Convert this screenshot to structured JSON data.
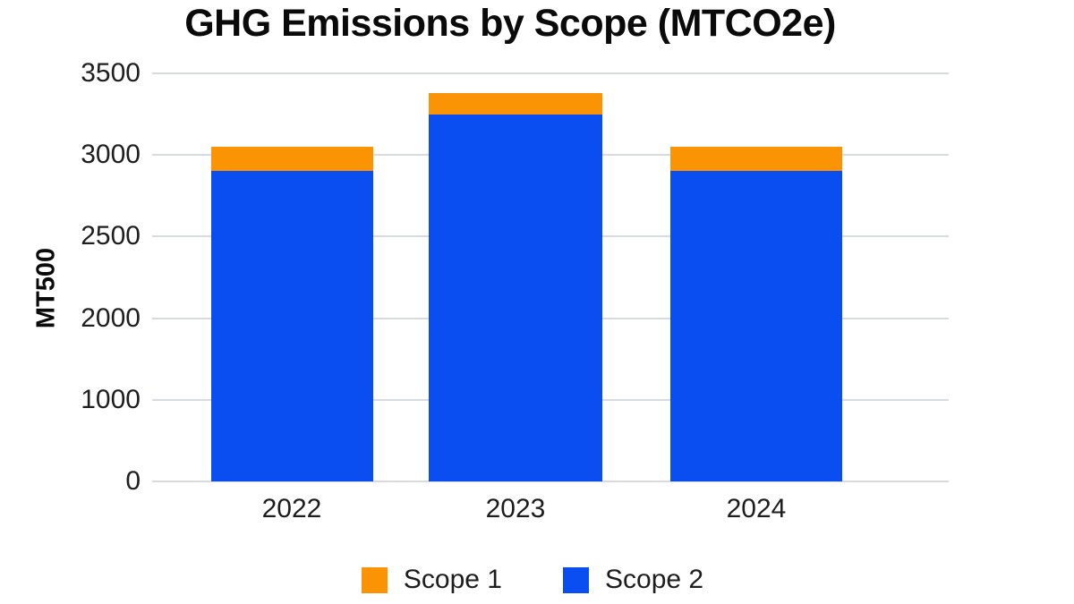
{
  "chart_data": {
    "type": "bar",
    "stacked": true,
    "title": "GHG Emissions by Scope (MTCO2e)",
    "ylabel": "MT500",
    "xlabel": "",
    "categories": [
      "2022",
      "2023",
      "2024"
    ],
    "series": [
      {
        "name": "Scope 2",
        "color": "#0a4df0",
        "values": [
          2900,
          3250,
          2900
        ]
      },
      {
        "name": "Scope 1",
        "color": "#fa9405",
        "values": [
          150,
          130,
          150
        ]
      }
    ],
    "y_ticks": [
      {
        "label": "3500",
        "value": 3500
      },
      {
        "label": "3000",
        "value": 3000
      },
      {
        "label": "2500",
        "value": 2500
      },
      {
        "label": "2000",
        "value": 2000
      },
      {
        "label": "1000",
        "value": 1000
      },
      {
        "label": "0",
        "value": 0
      }
    ],
    "ylim": [
      0,
      3500
    ],
    "grid": "horizontal-only",
    "legend_position": "bottom",
    "legend": [
      {
        "label": "Scope 1",
        "color": "#fa9405"
      },
      {
        "label": "Scope 2",
        "color": "#0a4df0"
      }
    ],
    "colors": {
      "background": "#ffffff",
      "gridline": "#d7dbe1",
      "tick_text": "#1e1e1e",
      "title_text": "#0a0a0a"
    }
  }
}
